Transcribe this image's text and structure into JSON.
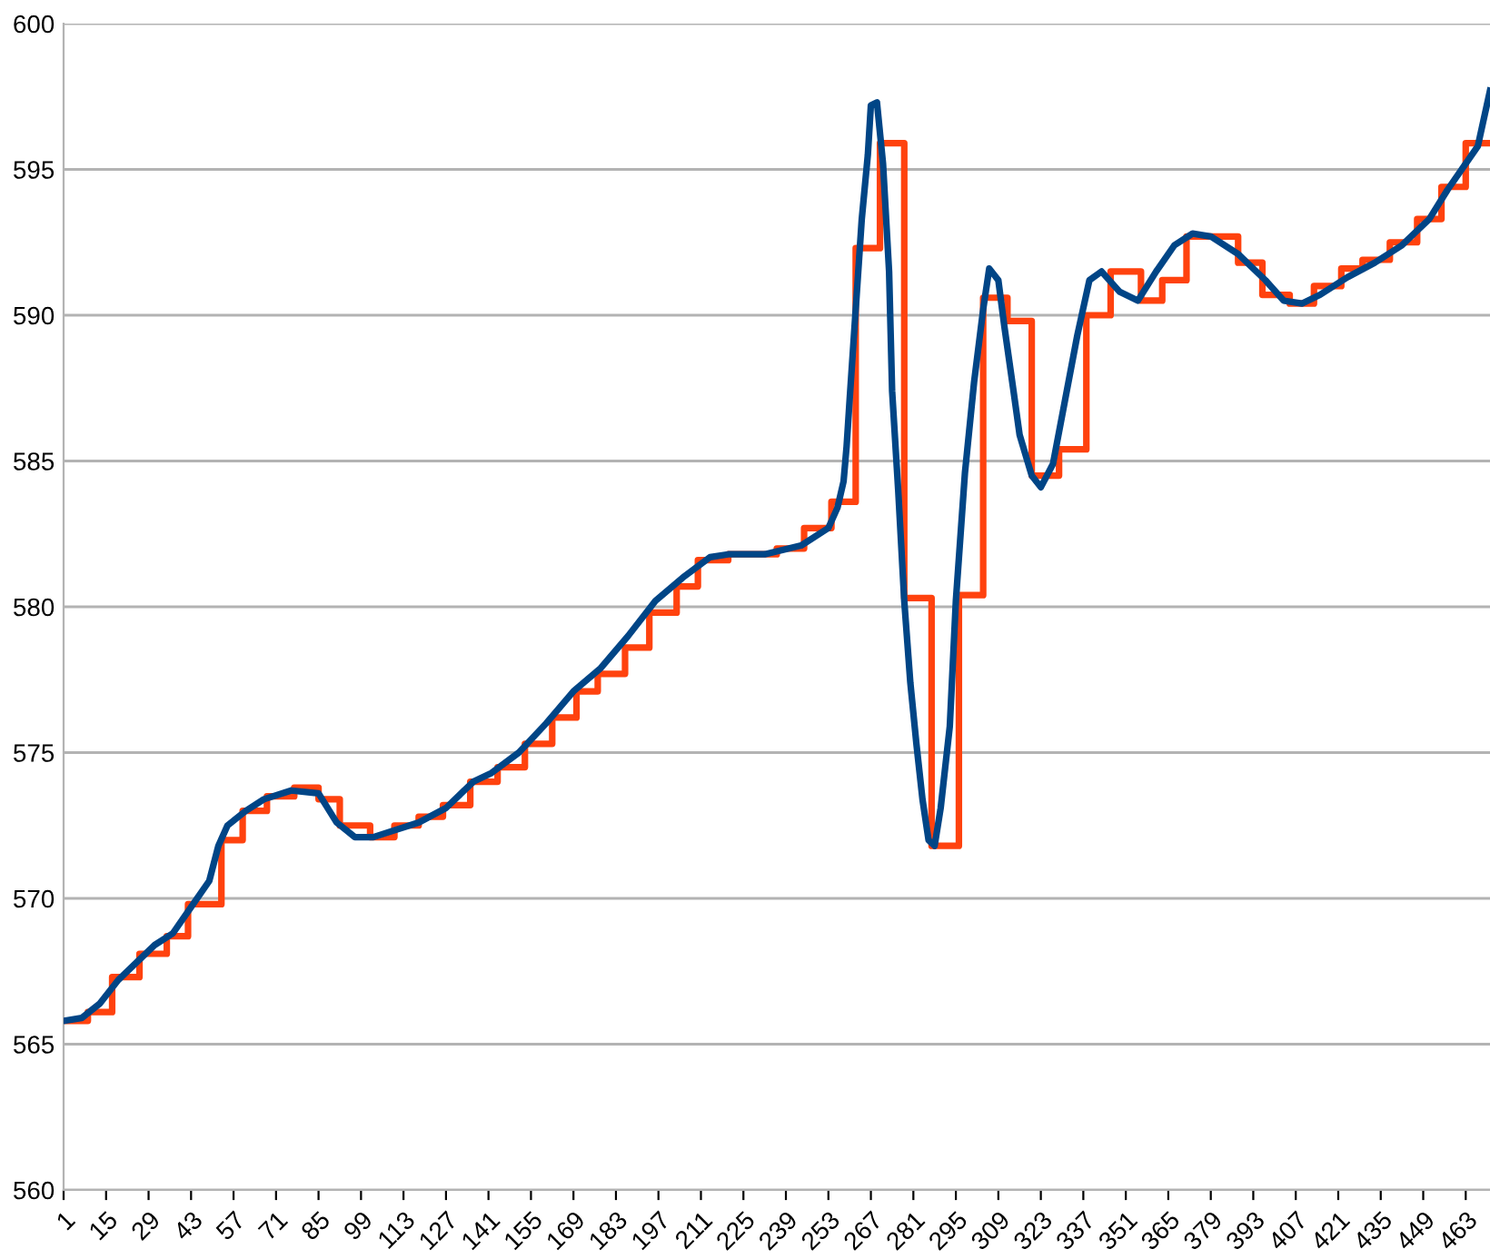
{
  "chart_data": {
    "type": "line",
    "series": [
      {
        "color": "#004586",
        "x": [
          1,
          7,
          13,
          19,
          25,
          31,
          37,
          43,
          49,
          52,
          55,
          61,
          67,
          76,
          85,
          91,
          97,
          103,
          109,
          118,
          127,
          136,
          142,
          151,
          160,
          169,
          178,
          187,
          196,
          205,
          214,
          220,
          232,
          244,
          253,
          256,
          258,
          259,
          260,
          262,
          264,
          266,
          267,
          269,
          271,
          273,
          274,
          276,
          278,
          280,
          282,
          284,
          286,
          288,
          290,
          293,
          295,
          298,
          301,
          304,
          306,
          309,
          311,
          314,
          316,
          320,
          323,
          327,
          331,
          335,
          339,
          343,
          349,
          355,
          361,
          367,
          373,
          379,
          388,
          397,
          403,
          409,
          415,
          424,
          433,
          442,
          451,
          457,
          463,
          467,
          471
        ],
        "values": [
          565.8,
          565.9,
          566.4,
          567.2,
          567.8,
          568.4,
          568.8,
          569.7,
          570.6,
          571.8,
          572.5,
          573.0,
          573.4,
          573.7,
          573.6,
          572.6,
          572.1,
          572.1,
          572.3,
          572.6,
          573.1,
          574.0,
          574.3,
          575.0,
          576.0,
          577.1,
          577.9,
          579.0,
          580.2,
          581.0,
          581.7,
          581.8,
          581.8,
          582.1,
          582.7,
          583.4,
          584.3,
          585.5,
          587.1,
          590.2,
          593.3,
          595.5,
          597.2,
          597.3,
          595.2,
          591.5,
          587.4,
          584.0,
          580.2,
          577.4,
          575.3,
          573.4,
          572.0,
          571.8,
          573.1,
          575.9,
          580.2,
          584.6,
          587.7,
          590.2,
          591.6,
          591.2,
          589.6,
          587.4,
          585.9,
          584.5,
          584.1,
          584.9,
          587.1,
          589.3,
          591.2,
          591.5,
          590.8,
          590.5,
          591.5,
          592.4,
          592.8,
          592.7,
          592.1,
          591.2,
          590.5,
          590.4,
          590.7,
          591.3,
          591.8,
          592.4,
          593.3,
          594.3,
          595.2,
          595.8,
          597.7
        ]
      },
      {
        "type": "step",
        "color": "#ff420e",
        "x": [
          1,
          9,
          17,
          26,
          35,
          42,
          53,
          60,
          68,
          77,
          85,
          92,
          102,
          110,
          118,
          126,
          135,
          144,
          153,
          162,
          170,
          177,
          186,
          194,
          203,
          210,
          220,
          236,
          245,
          254,
          262,
          270,
          278,
          287,
          296,
          304,
          312,
          320,
          329,
          338,
          346,
          356,
          363,
          371,
          388,
          396,
          405,
          413,
          422,
          429,
          438,
          447,
          455,
          463,
          471
        ],
        "values": [
          565.8,
          566.1,
          567.3,
          568.1,
          568.7,
          569.8,
          572.0,
          573.0,
          573.5,
          573.8,
          573.4,
          572.5,
          572.1,
          572.5,
          572.8,
          573.2,
          574.0,
          574.5,
          575.3,
          576.2,
          577.1,
          577.7,
          578.6,
          579.8,
          580.7,
          581.6,
          581.8,
          582.0,
          582.7,
          583.6,
          592.3,
          595.9,
          580.3,
          571.8,
          580.4,
          590.6,
          589.8,
          584.5,
          585.4,
          590.0,
          591.5,
          590.5,
          591.2,
          592.7,
          591.8,
          590.7,
          590.4,
          591.0,
          591.6,
          591.9,
          592.5,
          593.3,
          594.4,
          595.9,
          595.9
        ]
      }
    ],
    "xlim": [
      1,
      471
    ],
    "xticks": [
      1,
      15,
      29,
      43,
      57,
      71,
      85,
      99,
      113,
      127,
      141,
      155,
      169,
      183,
      197,
      211,
      225,
      239,
      253,
      267,
      281,
      295,
      309,
      323,
      337,
      351,
      365,
      379,
      393,
      407,
      421,
      435,
      449,
      463
    ],
    "ylim": [
      560,
      600
    ],
    "yticks": [
      560,
      565,
      570,
      575,
      580,
      585,
      590,
      595,
      600
    ],
    "grid": "y",
    "marker": "none",
    "line_style": "solid"
  }
}
